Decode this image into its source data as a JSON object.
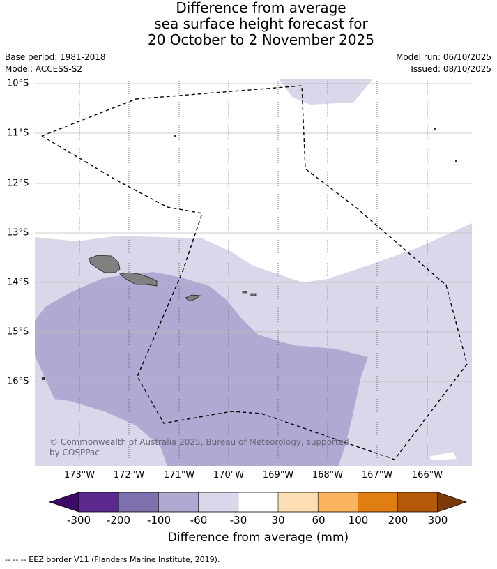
{
  "title": {
    "line1": "Difference from average",
    "line2": "sea surface height forecast for",
    "line3": "20 October to 2 November 2025"
  },
  "meta": {
    "base_period": "Base period: 1981-2018",
    "model": "Model: ACCESS-S2",
    "model_run": "Model run: 06/10/2025",
    "issued": "Issued: 08/10/2025"
  },
  "map": {
    "longitude_labels": [
      "173°W",
      "172°W",
      "171°W",
      "170°W",
      "169°W",
      "168°W",
      "167°W",
      "166°W"
    ],
    "latitude_labels": [
      "10°S",
      "11°S",
      "12°S",
      "13°S",
      "14°S",
      "15°S",
      "16°S"
    ],
    "copyright": "© Commonwealth of Australia 2025, Bureau of Meteorology, supported by COSPPac",
    "colors": {
      "land": "#808080",
      "band_neg60_neg30": "#d8d8ea",
      "band_neg100_neg60": "#aeaad2",
      "gridline": "#999999"
    }
  },
  "colorbar": {
    "title": "Difference from average (mm)",
    "tick_labels": [
      "-300",
      "-200",
      "-100",
      "-60",
      "-30",
      "30",
      "60",
      "100",
      "200",
      "300"
    ],
    "colors": [
      "#3e0a6a",
      "#5c2a8e",
      "#7f70ae",
      "#aeaad2",
      "#d8d8ea",
      "#ffffff",
      "#fddeb2",
      "#fbb35e",
      "#e07d13",
      "#b3590a",
      "#7c3a06"
    ]
  },
  "footer": {
    "legend": "--  --  -- EEZ border V11 (Flanders Marine Institute, 2019)."
  }
}
